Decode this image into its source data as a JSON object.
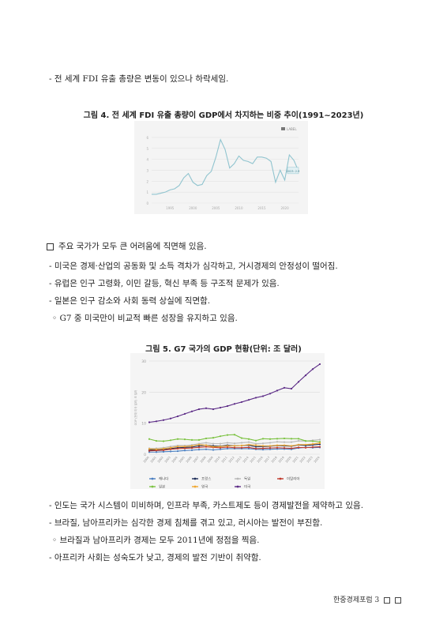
{
  "text": {
    "bullet1": "- 전 세계 FDI 유출 총량은 변동이 있으나 하락세임.",
    "fig4_caption": "그림 4. 전 세계 FDI 유출 총량이 GDP에서 차지하는 비중 추이(1991~2023년)",
    "section_heading": "주요 국가가 모두 큰 어려움에 직면해 있음.",
    "b_us": "- 미국은 경제·산업의 공동화 및 소득 격차가 심각하고, 거시경제의 안정성이 떨어짐.",
    "b_eu": "- 유럽은 인구 고령화, 이민 갈등, 혁신 부족 등 구조적 문제가 있음.",
    "b_jp": "- 일본은 인구 감소와 사회 동력 상실에 직면함.",
    "b_g7": "◦ G7 중 미국만이 비교적 빠른 성장을 유지하고 있음.",
    "fig5_caption": "그림 5. G7 국가의 GDP 현황(단위: 조 달러)",
    "b_in": "- 인도는 국가 시스템이 미비하며, 인프라 부족, 카스트제도 등이 경제발전을 제약하고 있음.",
    "b_br": "- 브라질, 남아프리카는 심각한 경제 침체를 겪고 있고, 러시아는 발전이 부진함.",
    "b_br2": "◦ 브라질과 남아프리카 경제는 모두 2011년에 정점을 찍음.",
    "b_af": "- 아프리카 사회는 성숙도가 낮고, 경제의 발전 기반이 취약함.",
    "footer": "한중경제포럼 3"
  },
  "chart_data": [
    {
      "type": "line",
      "title": "그림 4. 전 세계 FDI 유출 총량이 GDP에서 차지하는 비중 추이(1991~2023년)",
      "legend": [
        "LABEL"
      ],
      "legend_position": "top-right",
      "x": [
        1991,
        1992,
        1993,
        1994,
        1995,
        1996,
        1997,
        1998,
        1999,
        2000,
        2001,
        2002,
        2003,
        2004,
        2005,
        2006,
        2007,
        2008,
        2009,
        2010,
        2011,
        2012,
        2013,
        2014,
        2015,
        2016,
        2017,
        2018,
        2019,
        2020,
        2021,
        2022,
        2023
      ],
      "series": [
        {
          "name": "LABEL",
          "color": "#90c4cf",
          "values": [
            0.8,
            0.8,
            0.9,
            1.0,
            1.2,
            1.3,
            1.6,
            2.3,
            2.7,
            1.9,
            1.6,
            1.7,
            2.5,
            2.9,
            4.2,
            5.8,
            4.9,
            3.2,
            3.6,
            4.3,
            3.9,
            3.8,
            3.6,
            4.2,
            4.2,
            4.1,
            3.8,
            1.9,
            3.0,
            2.1,
            4.4,
            3.9,
            2.9
          ]
        }
      ],
      "xticks": [
        1995,
        2000,
        2005,
        2010,
        2015,
        2020
      ],
      "yticks": [
        0,
        1,
        2,
        3,
        4,
        5,
        6
      ],
      "ylim": [
        0,
        6.5
      ],
      "annotation": "2023: 2.9",
      "grid": true
    },
    {
      "type": "line",
      "title": "그림 5. G7 국가의 GDP 현황(단위: 조 달러)",
      "ylabel": "GDP (현재 미국 달러) 조 달러",
      "ylim": [
        0,
        30
      ],
      "yticks": [
        0,
        10,
        20,
        30
      ],
      "legend_position": "bottom",
      "x": [
        2000,
        2001,
        2002,
        2003,
        2004,
        2005,
        2006,
        2007,
        2008,
        2009,
        2010,
        2011,
        2012,
        2013,
        2014,
        2015,
        2016,
        2017,
        2018,
        2019,
        2020,
        2021,
        2022,
        2023,
        2024
      ],
      "series": [
        {
          "name": "캐나다",
          "color": "#4a7fc1",
          "values": [
            0.7,
            0.7,
            0.8,
            0.9,
            1.0,
            1.2,
            1.3,
            1.5,
            1.6,
            1.4,
            1.6,
            1.8,
            1.8,
            1.8,
            1.8,
            1.6,
            1.5,
            1.6,
            1.7,
            1.7,
            1.6,
            2.0,
            2.2,
            2.1,
            2.2
          ]
        },
        {
          "name": "프랑스",
          "color": "#1f2f5a",
          "values": [
            1.4,
            1.4,
            1.5,
            1.8,
            2.1,
            2.2,
            2.3,
            2.7,
            2.9,
            2.7,
            2.6,
            2.9,
            2.7,
            2.8,
            2.9,
            2.4,
            2.5,
            2.6,
            2.8,
            2.7,
            2.6,
            3.0,
            2.8,
            3.0,
            3.2
          ]
        },
        {
          "name": "독일",
          "color": "#b8b8b8",
          "values": [
            1.9,
            1.9,
            2.1,
            2.5,
            2.8,
            2.8,
            3.0,
            3.4,
            3.7,
            3.4,
            3.4,
            3.7,
            3.5,
            3.7,
            3.9,
            3.4,
            3.5,
            3.7,
            4.0,
            3.9,
            3.9,
            4.3,
            4.2,
            4.5,
            4.7
          ]
        },
        {
          "name": "이탈리아",
          "color": "#c0392b",
          "values": [
            1.1,
            1.2,
            1.3,
            1.6,
            1.8,
            1.9,
            2.0,
            2.2,
            2.4,
            2.2,
            2.1,
            2.3,
            2.1,
            2.1,
            2.2,
            1.8,
            1.9,
            2.0,
            2.1,
            2.0,
            1.9,
            2.2,
            2.1,
            2.3,
            2.4
          ]
        },
        {
          "name": "일본",
          "color": "#7cc242",
          "values": [
            4.9,
            4.3,
            4.2,
            4.5,
            4.9,
            4.8,
            4.6,
            4.6,
            5.1,
            5.3,
            5.8,
            6.2,
            6.3,
            5.2,
            4.9,
            4.4,
            5.0,
            4.9,
            5.0,
            5.1,
            5.0,
            5.0,
            4.3,
            4.2,
            4.0
          ]
        },
        {
          "name": "영국",
          "color": "#f0a830",
          "values": [
            1.7,
            1.6,
            1.8,
            2.1,
            2.5,
            2.5,
            2.7,
            3.1,
            2.9,
            2.4,
            2.5,
            2.7,
            2.7,
            2.8,
            3.1,
            2.9,
            2.7,
            2.7,
            2.9,
            2.9,
            2.7,
            3.1,
            3.1,
            3.3,
            3.6
          ]
        },
        {
          "name": "미국",
          "color": "#5b2a86",
          "values": [
            10.3,
            10.6,
            11.0,
            11.5,
            12.2,
            13.0,
            13.8,
            14.5,
            14.8,
            14.5,
            15.0,
            15.5,
            16.2,
            16.8,
            17.5,
            18.2,
            18.7,
            19.5,
            20.5,
            21.4,
            21.1,
            23.3,
            25.4,
            27.4,
            29.0
          ]
        }
      ],
      "grid": true
    }
  ]
}
